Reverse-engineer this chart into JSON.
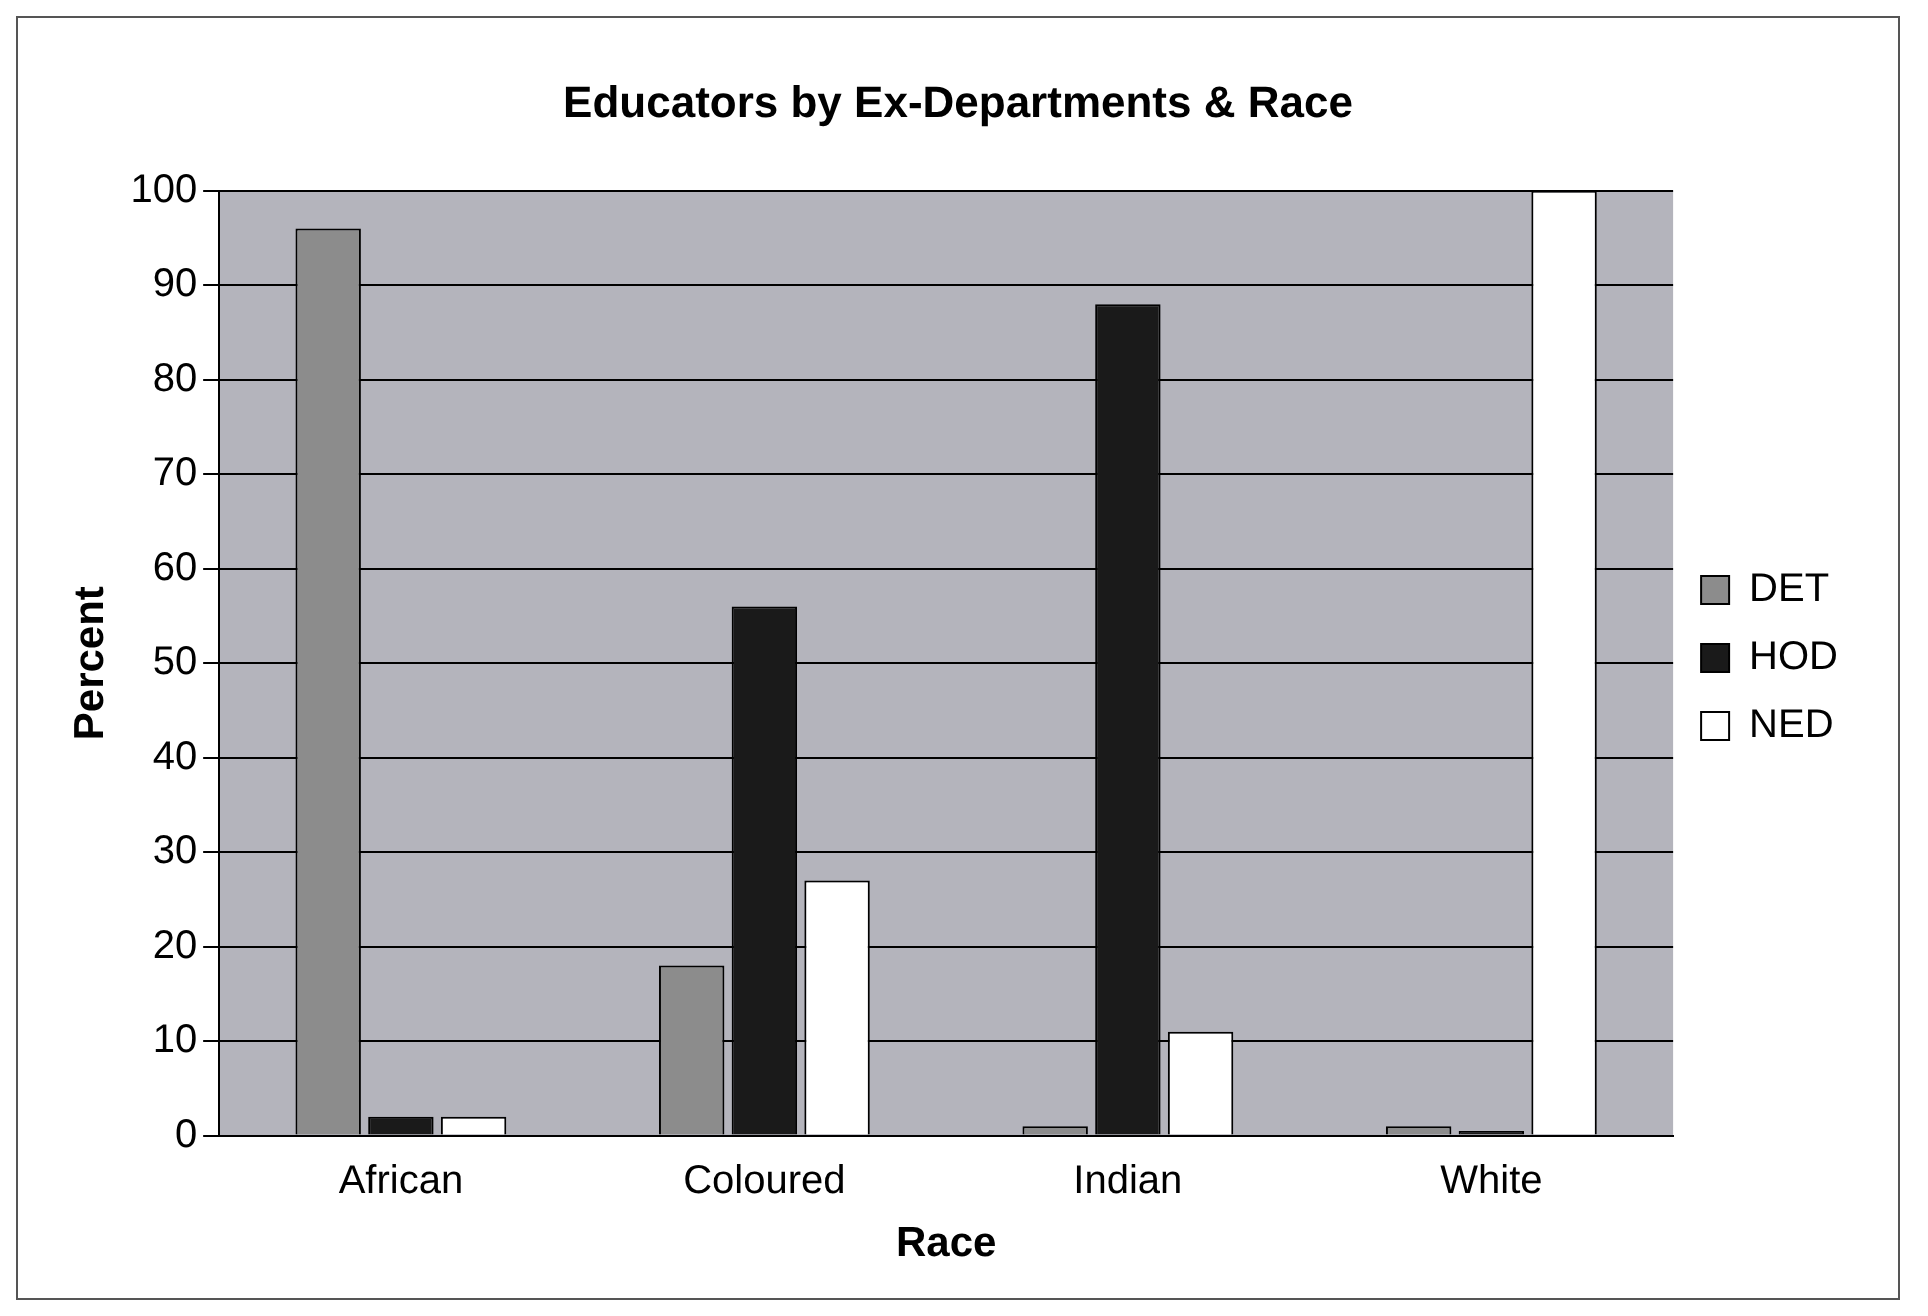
{
  "chart_data": {
    "type": "bar",
    "title": "Educators by Ex-Departments & Race",
    "xlabel": "Race",
    "ylabel": "Percent",
    "categories": [
      "African",
      "Coloured",
      "Indian",
      "White"
    ],
    "series": [
      {
        "name": "DET",
        "color": "#8c8c8c",
        "values": [
          96,
          18,
          1,
          1
        ]
      },
      {
        "name": "HOD",
        "color": "#1a1a1a",
        "values": [
          2,
          56,
          88,
          0.5
        ]
      },
      {
        "name": "NED",
        "color": "#ffffff",
        "values": [
          2,
          27,
          11,
          100
        ]
      }
    ],
    "ylim": [
      0,
      100
    ],
    "yticks": [
      0,
      10,
      20,
      30,
      40,
      50,
      60,
      70,
      80,
      90,
      100
    ],
    "grid": "y",
    "legend": "right"
  }
}
